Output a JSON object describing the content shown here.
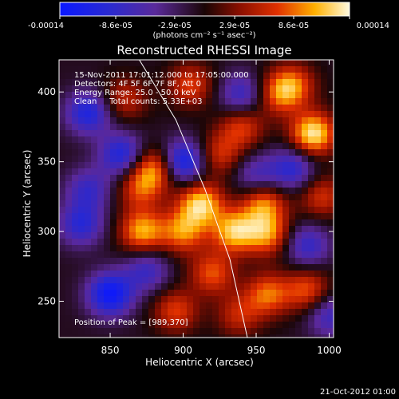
{
  "chart_data": {
    "type": "heatmap",
    "title": "Reconstructed RHESSI Image",
    "xlabel": "Heliocentric X (arcsec)",
    "ylabel": "Heliocentric Y (arcsec)",
    "xlim": [
      815,
      1003
    ],
    "ylim": [
      224,
      423
    ],
    "x_ticks": [
      850,
      900,
      950,
      1000
    ],
    "y_ticks": [
      250,
      300,
      350,
      400
    ],
    "colorbar": {
      "range": [
        -0.00014,
        0.00014
      ],
      "tick_labels": [
        "-0.00014",
        "-8.6e-05",
        "-2.9e-05",
        "2.9e-05",
        "8.6e-05",
        "0.00014"
      ],
      "tick_values": [
        -0.00014,
        -8.6e-05,
        -2.9e-05,
        2.9e-05,
        8.6e-05,
        0.00014
      ],
      "unit_label": "(photons cm⁻² s⁻¹ asec⁻²)"
    },
    "info_lines": [
      "15-Nov-2011 17:01:12.000 to 17:05:00.000",
      "Detectors: 4F 5F 6F 7F 8F, Att 0",
      "Energy Range: 25.0 - 50.0 keV",
      "Clean     Total counts: 5.33E+03"
    ],
    "peak_label": "Position of Peak = [989,370]",
    "peak": [
      989,
      370
    ],
    "limb_arc": [
      [
        870,
        423
      ],
      [
        895,
        380
      ],
      [
        915,
        330
      ],
      [
        932,
        280
      ],
      [
        944,
        224
      ]
    ],
    "heat_sources": [
      {
        "x": 989,
        "y": 370,
        "v": 1.0
      },
      {
        "x": 912,
        "y": 320,
        "v": 0.9
      },
      {
        "x": 935,
        "y": 300,
        "v": 0.85
      },
      {
        "x": 872,
        "y": 300,
        "v": 0.8
      },
      {
        "x": 880,
        "y": 345,
        "v": 0.75
      },
      {
        "x": 900,
        "y": 300,
        "v": 0.7
      },
      {
        "x": 955,
        "y": 320,
        "v": 0.7
      },
      {
        "x": 958,
        "y": 298,
        "v": 0.7
      },
      {
        "x": 920,
        "y": 270,
        "v": 0.6
      },
      {
        "x": 958,
        "y": 255,
        "v": 0.65
      },
      {
        "x": 985,
        "y": 258,
        "v": 0.6
      },
      {
        "x": 895,
        "y": 243,
        "v": 0.55
      },
      {
        "x": 905,
        "y": 405,
        "v": 0.55
      },
      {
        "x": 975,
        "y": 405,
        "v": 0.6
      },
      {
        "x": 940,
        "y": 375,
        "v": 0.55
      },
      {
        "x": 925,
        "y": 355,
        "v": 0.5
      },
      {
        "x": 860,
        "y": 395,
        "v": 0.45
      },
      {
        "x": 995,
        "y": 325,
        "v": 0.5
      },
      {
        "x": 965,
        "y": 398,
        "v": 0.5
      },
      {
        "x": 938,
        "y": 240,
        "v": 0.45
      },
      {
        "x": 870,
        "y": 330,
        "v": 0.5
      }
    ],
    "cool_sources": [
      {
        "x": 850,
        "y": 255,
        "v": -0.9
      },
      {
        "x": 900,
        "y": 350,
        "v": -0.85
      },
      {
        "x": 835,
        "y": 385,
        "v": -0.7
      },
      {
        "x": 858,
        "y": 355,
        "v": -0.7
      },
      {
        "x": 975,
        "y": 345,
        "v": -0.6
      },
      {
        "x": 985,
        "y": 290,
        "v": -0.55
      },
      {
        "x": 940,
        "y": 398,
        "v": -0.55
      },
      {
        "x": 830,
        "y": 305,
        "v": -0.6
      },
      {
        "x": 875,
        "y": 272,
        "v": -0.5
      },
      {
        "x": 950,
        "y": 340,
        "v": -0.45
      },
      {
        "x": 1000,
        "y": 240,
        "v": -0.5
      },
      {
        "x": 835,
        "y": 330,
        "v": -0.5
      }
    ]
  },
  "timestamp": "21-Oct-2012 01:00"
}
